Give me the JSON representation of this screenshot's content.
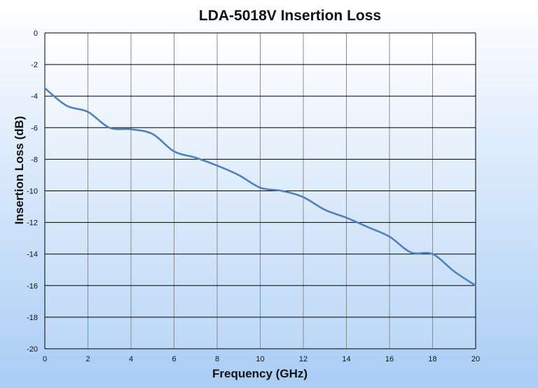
{
  "chart_data": {
    "type": "line",
    "title": "LDA-5018V Insertion Loss",
    "xlabel": "Frequency (GHz)",
    "ylabel": "Insertion Loss (dB)",
    "xlim": [
      0,
      20
    ],
    "ylim": [
      -20,
      0
    ],
    "x_ticks": [
      0,
      2,
      4,
      6,
      8,
      10,
      12,
      14,
      16,
      18,
      20
    ],
    "y_ticks": [
      0,
      -2,
      -4,
      -6,
      -8,
      -10,
      -12,
      -14,
      -16,
      -18,
      -20
    ],
    "grid": true,
    "legend": "none",
    "series": [
      {
        "color": "#4f81bd",
        "x": [
          0,
          1,
          2,
          3,
          4,
          5,
          6,
          7,
          8,
          9,
          10,
          11,
          12,
          13,
          14,
          15,
          16,
          17,
          18,
          19,
          20
        ],
        "y": [
          -3.5,
          -4.6,
          -5.0,
          -6.0,
          -6.1,
          -6.4,
          -7.5,
          -7.9,
          -8.4,
          -9.0,
          -9.8,
          -10.0,
          -10.4,
          -11.2,
          -11.7,
          -12.3,
          -12.9,
          -13.9,
          -14.0,
          -15.1,
          -16.0
        ]
      }
    ]
  }
}
